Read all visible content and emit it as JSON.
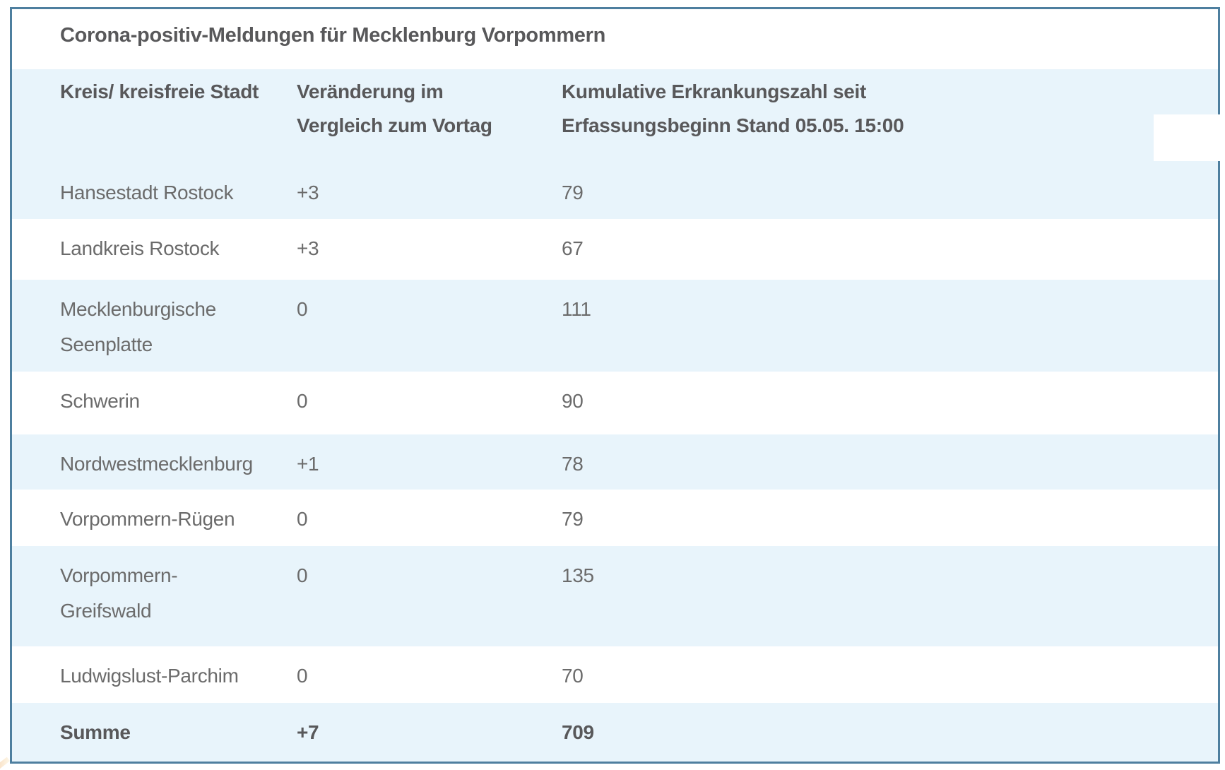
{
  "colors": {
    "stripe_blue": "#e8f4fb",
    "row_white": "#ffffff",
    "border_blue": "#4e7f9f",
    "heading_text": "#58585a",
    "body_text": "#6b6b6b",
    "white_patch": "#ffffff",
    "corner_artifact": "#f2c08a"
  },
  "table": {
    "title": "Corona-positiv-Meldungen für Mecklenburg Vorpommern",
    "header": {
      "kreis": "Kreis/ kreisfreie Stadt",
      "veraenderung": "Veränderung im\nVergleich zum Vortag",
      "kumulativ": "Kumulative Erkrankungszahl seit\nErfassungsbeginn Stand 05.05. 15:00"
    },
    "rows": [
      {
        "kreis": "Hansestadt Rostock",
        "veraenderung": "+3",
        "kumulativ": "79"
      },
      {
        "kreis": "Landkreis Rostock",
        "veraenderung": "+3",
        "kumulativ": "67"
      },
      {
        "kreis": "Mecklenburgische\nSeenplatte",
        "veraenderung": "0",
        "kumulativ": "111"
      },
      {
        "kreis": "Schwerin",
        "veraenderung": "0",
        "kumulativ": "90"
      },
      {
        "kreis": "Nordwestmecklenburg",
        "veraenderung": "+1",
        "kumulativ": "78"
      },
      {
        "kreis": "Vorpommern-Rügen",
        "veraenderung": "0",
        "kumulativ": "79"
      },
      {
        "kreis": "Vorpommern-\nGreifswald",
        "veraenderung": "0",
        "kumulativ": "135"
      },
      {
        "kreis": "Ludwigslust-Parchim",
        "veraenderung": "0",
        "kumulativ": "70"
      }
    ],
    "total": {
      "kreis": "Summe",
      "veraenderung": "+7",
      "kumulativ": "709"
    }
  }
}
